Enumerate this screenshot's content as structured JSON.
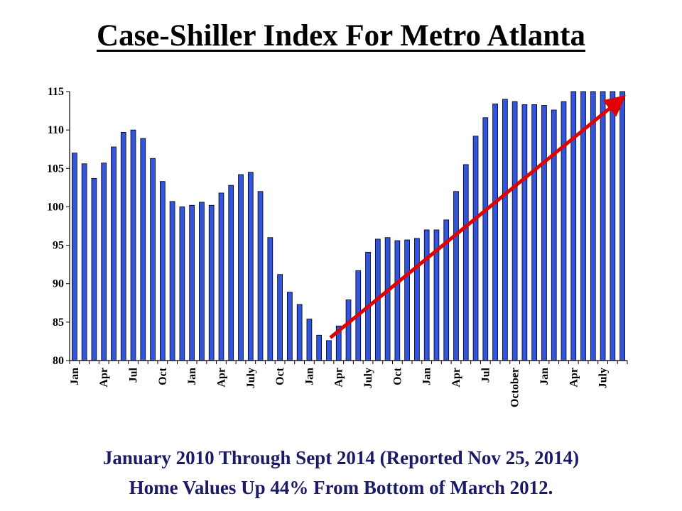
{
  "chart_data": {
    "type": "bar",
    "title": "Case-Shiller Index For Metro Atlanta",
    "subtitle": [
      "January 2010 Through Sept 2014 (Reported Nov 25, 2014)",
      "Home Values Up 44% From Bottom of March 2012."
    ],
    "ylim": [
      80,
      115
    ],
    "yticks": [
      80,
      85,
      90,
      95,
      100,
      105,
      110,
      115
    ],
    "bar_color": "#3355dd",
    "trend_color": "#e00000",
    "x_labels": [
      {
        "index": 0,
        "label": "Jan"
      },
      {
        "index": 3,
        "label": "Apr"
      },
      {
        "index": 6,
        "label": "Jul"
      },
      {
        "index": 9,
        "label": "Oct"
      },
      {
        "index": 12,
        "label": "Jan"
      },
      {
        "index": 15,
        "label": "Apr"
      },
      {
        "index": 18,
        "label": "July"
      },
      {
        "index": 21,
        "label": "Oct"
      },
      {
        "index": 24,
        "label": "Jan"
      },
      {
        "index": 27,
        "label": "Apr"
      },
      {
        "index": 30,
        "label": "July"
      },
      {
        "index": 33,
        "label": "Oct"
      },
      {
        "index": 36,
        "label": "Jan"
      },
      {
        "index": 39,
        "label": "Apr"
      },
      {
        "index": 42,
        "label": "Jul"
      },
      {
        "index": 45,
        "label": "October"
      },
      {
        "index": 48,
        "label": "Jan"
      },
      {
        "index": 51,
        "label": "Apr"
      },
      {
        "index": 54,
        "label": "July"
      }
    ],
    "values": [
      107.0,
      105.6,
      103.7,
      105.7,
      107.8,
      109.7,
      110.0,
      108.9,
      106.3,
      103.3,
      100.7,
      100.0,
      100.2,
      100.6,
      100.2,
      101.8,
      102.8,
      104.2,
      104.5,
      102.0,
      96.0,
      91.2,
      88.9,
      87.3,
      85.4,
      83.3,
      82.6,
      84.5,
      87.9,
      91.7,
      94.1,
      95.8,
      96.0,
      95.6,
      95.7,
      95.9,
      97.0,
      97.0,
      98.3,
      102.0,
      105.5,
      109.2,
      111.6,
      113.4,
      114.0,
      113.7,
      113.3,
      113.3,
      113.2,
      112.6,
      113.7,
      115.0,
      115.0,
      115.0,
      115.0,
      115.0,
      115.0
    ],
    "trend_arrow": {
      "from": {
        "index": 26,
        "value": 82.6
      },
      "to": {
        "index": 56,
        "value": 114.0
      }
    }
  }
}
